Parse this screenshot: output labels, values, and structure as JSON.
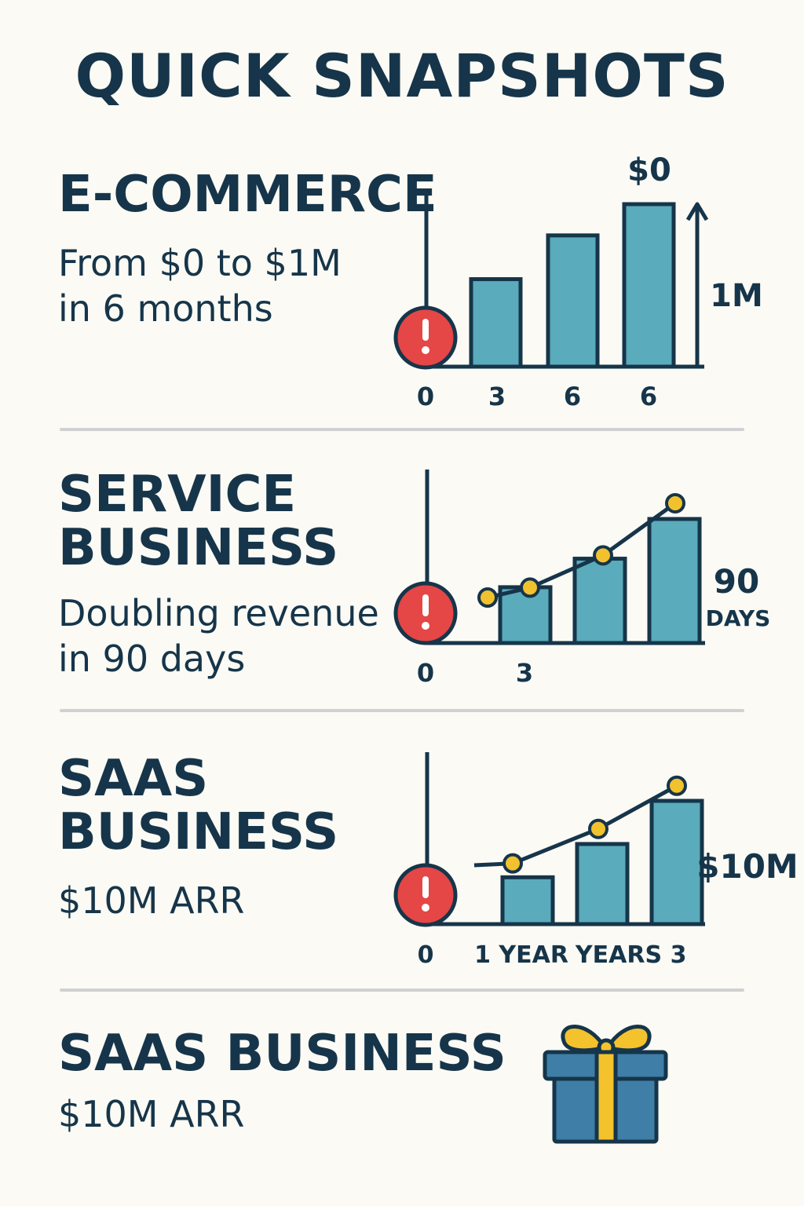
{
  "page": {
    "title": "QUICK SNAPSHOTS"
  },
  "colors": {
    "background": "#fbfaf4",
    "ink": "#16354a",
    "bar": "#5aabbb",
    "alert": "#e54646",
    "point": "#f2c12e",
    "gift_box": "#3e7ea7",
    "gift_ribbon": "#f3c22c",
    "divider": "#cfd1d2"
  },
  "sections": [
    {
      "heading": "E-COMMERCE",
      "subtext": "From $0 to $1M\nin 6 months"
    },
    {
      "heading": "SERVICE\nBUSINESS",
      "subtext": "Doubling revenue\nin 90 days"
    },
    {
      "heading": "SAAS\nBUSINESS",
      "subtext": "$10M ARR"
    },
    {
      "heading": "SAAS BUSINESS",
      "subtext": "$10M ARR",
      "icon": "gift-icon"
    }
  ],
  "chart_data": [
    {
      "type": "bar",
      "categories": [
        "3",
        "6",
        "6"
      ],
      "values": [
        0.42,
        0.63,
        0.78
      ],
      "x_tick_labels": [
        "0",
        "3",
        "6",
        "6"
      ],
      "annotations": [
        "$0",
        "1M"
      ],
      "icons": [
        "alert-icon",
        "arrow-up-icon"
      ]
    },
    {
      "type": "bar",
      "values": [
        0.45,
        0.68,
        1.0
      ],
      "x_tick_labels": [
        "0",
        "3"
      ],
      "trend_line": [
        0.62,
        0.7,
        0.96,
        1.38
      ],
      "annotations": [
        "90",
        "DAYS"
      ],
      "icons": [
        "alert-icon"
      ]
    },
    {
      "type": "bar",
      "values": [
        0.38,
        0.65,
        1.0
      ],
      "x_tick_labels": [
        "0",
        "1 YEAR",
        "YEARS",
        "3"
      ],
      "trend_line": [
        0.5,
        0.62,
        0.9,
        1.25
      ],
      "annotations": [
        "$10M"
      ],
      "icons": [
        "alert-icon"
      ]
    }
  ]
}
